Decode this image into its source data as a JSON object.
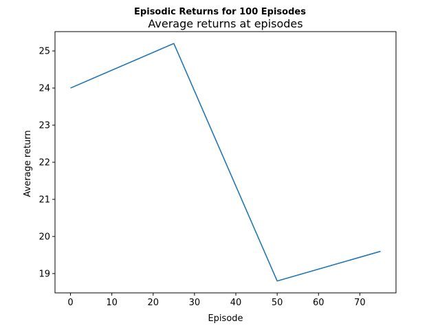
{
  "chart_data": {
    "type": "line",
    "suptitle": "Episodic Returns for 100 Episodes",
    "title": "Average returns at episodes",
    "xlabel": "Episode",
    "ylabel": "Average return",
    "xlim": [
      -3.75,
      78.75
    ],
    "ylim": [
      18.48,
      25.52
    ],
    "xticks": [
      0,
      10,
      20,
      30,
      40,
      50,
      60,
      70
    ],
    "yticks": [
      19,
      20,
      21,
      22,
      23,
      24,
      25
    ],
    "grid": false,
    "legend": "none",
    "series": [
      {
        "color": "#1f77b4",
        "x": [
          0,
          25,
          50,
          75
        ],
        "y": [
          24.0,
          25.2,
          18.8,
          19.6
        ]
      }
    ]
  }
}
